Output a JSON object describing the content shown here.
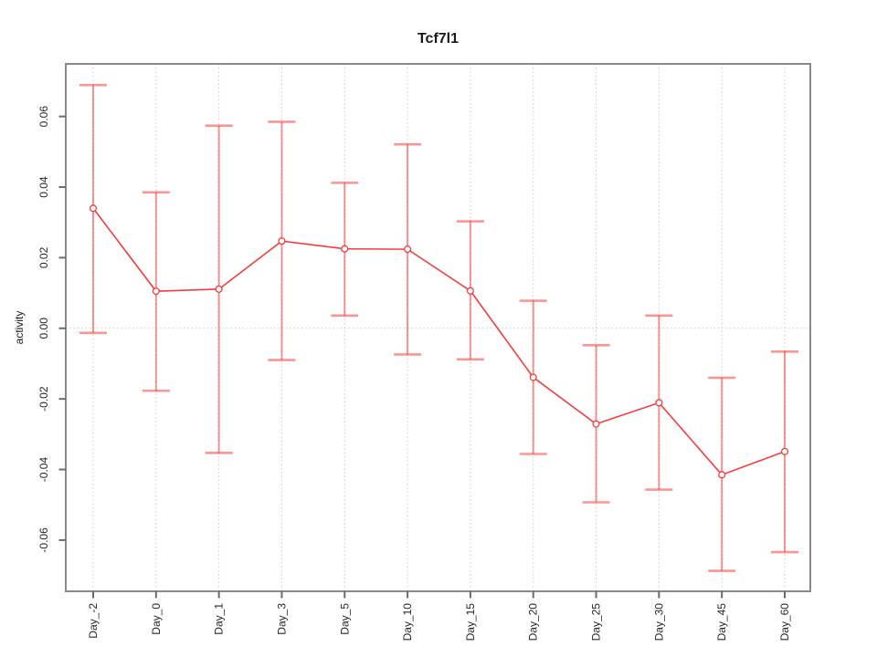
{
  "chart_data": {
    "type": "line",
    "title": "Tcf7l1",
    "xlabel": "",
    "ylabel": "activity",
    "categories": [
      "Day_-2",
      "Day_0",
      "Day_1",
      "Day_3",
      "Day_5",
      "Day_10",
      "Day_15",
      "Day_20",
      "Day_25",
      "Day_30",
      "Day_45",
      "Day_60"
    ],
    "series": [
      {
        "name": "activity",
        "values": [
          0.034,
          0.0105,
          0.0111,
          0.0247,
          0.0225,
          0.0224,
          0.0106,
          -0.0139,
          -0.0271,
          -0.0211,
          -0.0415,
          -0.0349
        ],
        "error_high": [
          0.0689,
          0.0385,
          0.0574,
          0.0585,
          0.0412,
          0.0521,
          0.0303,
          0.0078,
          -0.0048,
          0.0036,
          -0.014,
          -0.0066
        ],
        "error_low": [
          -0.0013,
          -0.0177,
          -0.0353,
          -0.009,
          0.0036,
          -0.0074,
          -0.0088,
          -0.0356,
          -0.0493,
          -0.0457,
          -0.0687,
          -0.0634
        ]
      }
    ],
    "ylim": [
      -0.0745,
      0.0749
    ],
    "yticks": [
      0.06,
      0.04,
      0.02,
      0.0,
      -0.02,
      -0.04,
      -0.06
    ],
    "ytick_labels": [
      "0.06",
      "0.04",
      "0.02",
      "0.00",
      "-0.02",
      "-0.04",
      "-0.06"
    ],
    "grid": {
      "vertical_gridlines": true,
      "zero_line": true,
      "legend": "none"
    },
    "colors": {
      "line": "#f23d3d",
      "point_stroke": "#f23d3d",
      "point_fill": "#ffffff",
      "error_bar": "rgba(247,62,62,0.55)",
      "grid": "#c9c9c9",
      "box": "#898989",
      "tick": "#6b6b6b",
      "text": "#262626"
    }
  }
}
